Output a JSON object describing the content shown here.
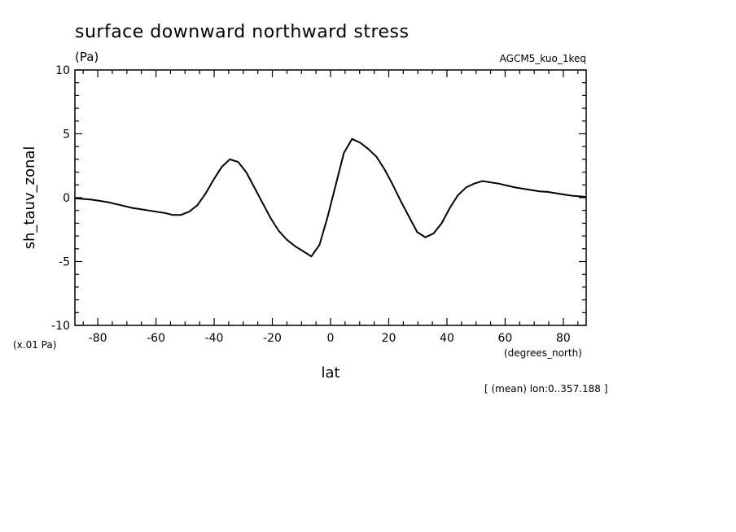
{
  "header": {
    "title": "surface downward northward stress",
    "units": "(Pa)",
    "dataset": "AGCM5_kuo_1keq",
    "scale_note": "(x.01 Pa)",
    "x_units": "(degrees_north)",
    "footer_note": "[ (mean) lon:0..357.188 ]"
  },
  "chart_data": {
    "type": "line",
    "title": "surface downward northward stress",
    "xlabel": "lat",
    "ylabel": "sh_tauv_zonal",
    "xlim": [
      -87.86,
      87.86
    ],
    "ylim": [
      -10,
      10
    ],
    "xticks": [
      -80,
      -60,
      -40,
      -20,
      0,
      20,
      40,
      60,
      80
    ],
    "xtick_labels": [
      "-80",
      "-60",
      "-40",
      "-20",
      "0",
      "20",
      "40",
      "60",
      "80"
    ],
    "yticks": [
      -10,
      -5,
      0,
      5,
      10
    ],
    "ytick_labels": [
      "-10",
      "-5",
      "0",
      "5",
      "10"
    ],
    "grid": false,
    "series": [
      {
        "x": [
          -87.9,
          -84.8,
          -82.2,
          -79.4,
          -76.6,
          -73.8,
          -71.0,
          -68.2,
          -65.4,
          -62.6,
          -59.8,
          -57.0,
          -54.2,
          -51.4,
          -48.6,
          -45.8,
          -43.0,
          -40.2,
          -37.4,
          -34.6,
          -31.8,
          -29.0,
          -26.2,
          -23.4,
          -20.6,
          -17.8,
          -15.0,
          -12.2,
          -9.4,
          -6.6,
          -3.8,
          -1.0,
          1.8,
          4.6,
          7.4,
          10.2,
          13.0,
          15.8,
          18.6,
          21.4,
          24.2,
          27.0,
          29.8,
          32.6,
          35.4,
          38.2,
          41.0,
          43.8,
          46.6,
          49.4,
          52.2,
          55.0,
          57.8,
          60.6,
          63.4,
          66.2,
          69.0,
          71.8,
          74.6,
          77.4,
          80.2,
          83.0,
          85.8,
          87.9
        ],
        "values": [
          -0.05,
          -0.1,
          -0.15,
          -0.25,
          -0.35,
          -0.5,
          -0.65,
          -0.8,
          -0.9,
          -1.0,
          -1.1,
          -1.2,
          -1.35,
          -1.35,
          -1.1,
          -0.6,
          0.3,
          1.4,
          2.4,
          3.0,
          2.8,
          2.0,
          0.8,
          -0.4,
          -1.6,
          -2.6,
          -3.3,
          -3.8,
          -4.2,
          -4.6,
          -3.7,
          -1.5,
          1.0,
          3.5,
          4.6,
          4.3,
          3.8,
          3.2,
          2.2,
          1.0,
          -0.3,
          -1.5,
          -2.7,
          -3.1,
          -2.8,
          -2.0,
          -0.8,
          0.2,
          0.8,
          1.1,
          1.3,
          1.2,
          1.1,
          0.95,
          0.8,
          0.7,
          0.6,
          0.5,
          0.45,
          0.35,
          0.25,
          0.15,
          0.1,
          0.05
        ]
      }
    ]
  }
}
